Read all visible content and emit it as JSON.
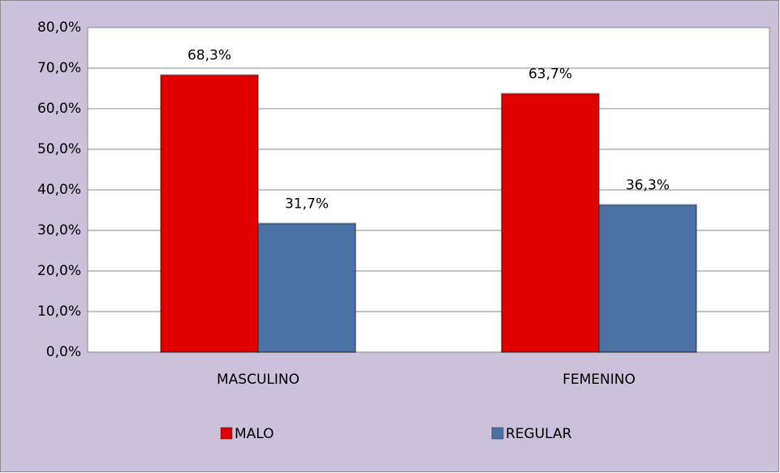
{
  "chart_data": {
    "type": "bar",
    "categories": [
      "MASCULINO",
      "FEMENINO"
    ],
    "series": [
      {
        "name": "MALO",
        "color": "#e00000",
        "values": [
          68.3,
          63.7
        ],
        "value_labels": [
          "68,3%",
          "63,7%"
        ]
      },
      {
        "name": "REGULAR",
        "color": "#4a72a4",
        "values": [
          31.7,
          36.3
        ],
        "value_labels": [
          "31,7%",
          "36,3%"
        ]
      }
    ],
    "ylim": [
      0,
      80
    ],
    "yticks": [
      {
        "value": 0,
        "label": "0,0%"
      },
      {
        "value": 10,
        "label": "10,0%"
      },
      {
        "value": 20,
        "label": "20,0%"
      },
      {
        "value": 30,
        "label": "30,0%"
      },
      {
        "value": 40,
        "label": "40,0%"
      },
      {
        "value": 50,
        "label": "50,0%"
      },
      {
        "value": 60,
        "label": "60,0%"
      },
      {
        "value": 70,
        "label": "70,0%"
      },
      {
        "value": 80,
        "label": "80,0%"
      }
    ],
    "grid": true,
    "legend": "bottom"
  }
}
